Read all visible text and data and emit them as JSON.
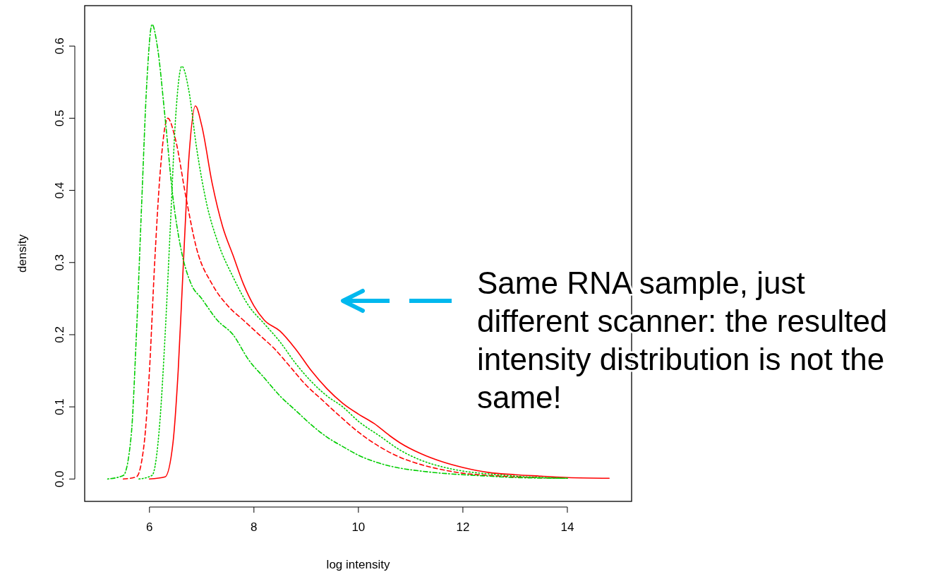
{
  "chart_data": {
    "type": "line",
    "xlabel": "log intensity",
    "ylabel": "density",
    "xlim": [
      4.76,
      15.23
    ],
    "ylim": [
      -0.031,
      0.656
    ],
    "xticks": [
      6,
      8,
      10,
      12,
      14
    ],
    "yticks": [
      {
        "value": 0,
        "label": "0.0"
      },
      0.1,
      0.2,
      0.3,
      0.4,
      0.5,
      0.6
    ],
    "grid": false,
    "annotations": [
      "Same RNA sample, just different scanner: the resulted intensity distribution is not the same!"
    ],
    "series": [
      {
        "color": "#ff0000",
        "line_style": "solid",
        "x": [
          6.0,
          6.3,
          6.45,
          6.55,
          6.65,
          6.75,
          6.88,
          7.0,
          7.2,
          7.4,
          7.6,
          7.8,
          8.0,
          8.2,
          8.5,
          8.8,
          9.1,
          9.4,
          9.7,
          10.0,
          10.3,
          10.6,
          10.8,
          11.2,
          11.6,
          12.0,
          12.5,
          13.0,
          13.5,
          14.0,
          14.8
        ],
        "values": [
          0,
          0.003,
          0.05,
          0.15,
          0.3,
          0.44,
          0.517,
          0.49,
          0.41,
          0.35,
          0.31,
          0.27,
          0.24,
          0.22,
          0.205,
          0.18,
          0.15,
          0.125,
          0.105,
          0.09,
          0.077,
          0.06,
          0.05,
          0.035,
          0.024,
          0.016,
          0.009,
          0.006,
          0.004,
          0.002,
          0.001
        ]
      },
      {
        "color": "#ff0000",
        "line_style": "dashed",
        "x": [
          5.5,
          5.75,
          5.9,
          6.0,
          6.1,
          6.2,
          6.35,
          6.5,
          6.7,
          6.9,
          7.2,
          7.5,
          7.8,
          8.1,
          8.4,
          8.7,
          9.0,
          9.3,
          9.6,
          10.0,
          10.4,
          10.8,
          11.2,
          11.6,
          12.0,
          12.5,
          13.0,
          14.0
        ],
        "values": [
          0,
          0.003,
          0.05,
          0.15,
          0.3,
          0.42,
          0.5,
          0.47,
          0.39,
          0.32,
          0.27,
          0.24,
          0.22,
          0.2,
          0.18,
          0.155,
          0.13,
          0.11,
          0.09,
          0.065,
          0.045,
          0.03,
          0.02,
          0.013,
          0.008,
          0.005,
          0.003,
          0.001
        ]
      },
      {
        "color": "#00cd00",
        "line_style": "dotted",
        "x": [
          5.8,
          6.05,
          6.2,
          6.3,
          6.4,
          6.5,
          6.62,
          6.75,
          6.9,
          7.1,
          7.3,
          7.6,
          7.9,
          8.2,
          8.5,
          8.8,
          9.1,
          9.4,
          9.7,
          10.0,
          10.4,
          10.8,
          11.2,
          11.6,
          12.0,
          12.5,
          13.0,
          14.0
        ],
        "values": [
          0,
          0.005,
          0.08,
          0.2,
          0.35,
          0.5,
          0.572,
          0.54,
          0.46,
          0.38,
          0.33,
          0.28,
          0.24,
          0.215,
          0.19,
          0.16,
          0.135,
          0.115,
          0.1,
          0.08,
          0.06,
          0.04,
          0.026,
          0.017,
          0.011,
          0.007,
          0.004,
          0.001
        ]
      },
      {
        "color": "#00cd00",
        "line_style": "dashdot",
        "x": [
          5.2,
          5.5,
          5.65,
          5.75,
          5.85,
          5.95,
          6.05,
          6.15,
          6.3,
          6.45,
          6.6,
          6.8,
          7.0,
          7.3,
          7.6,
          7.9,
          8.2,
          8.5,
          8.8,
          9.1,
          9.4,
          9.7,
          10.0,
          10.4,
          10.8,
          11.2,
          11.6,
          12.0,
          12.5,
          13.0,
          14.0
        ],
        "values": [
          0,
          0.005,
          0.06,
          0.2,
          0.38,
          0.55,
          0.63,
          0.6,
          0.5,
          0.39,
          0.32,
          0.27,
          0.25,
          0.22,
          0.2,
          0.165,
          0.14,
          0.115,
          0.095,
          0.075,
          0.058,
          0.045,
          0.033,
          0.022,
          0.015,
          0.011,
          0.008,
          0.006,
          0.004,
          0.002,
          0.001
        ]
      }
    ]
  }
}
